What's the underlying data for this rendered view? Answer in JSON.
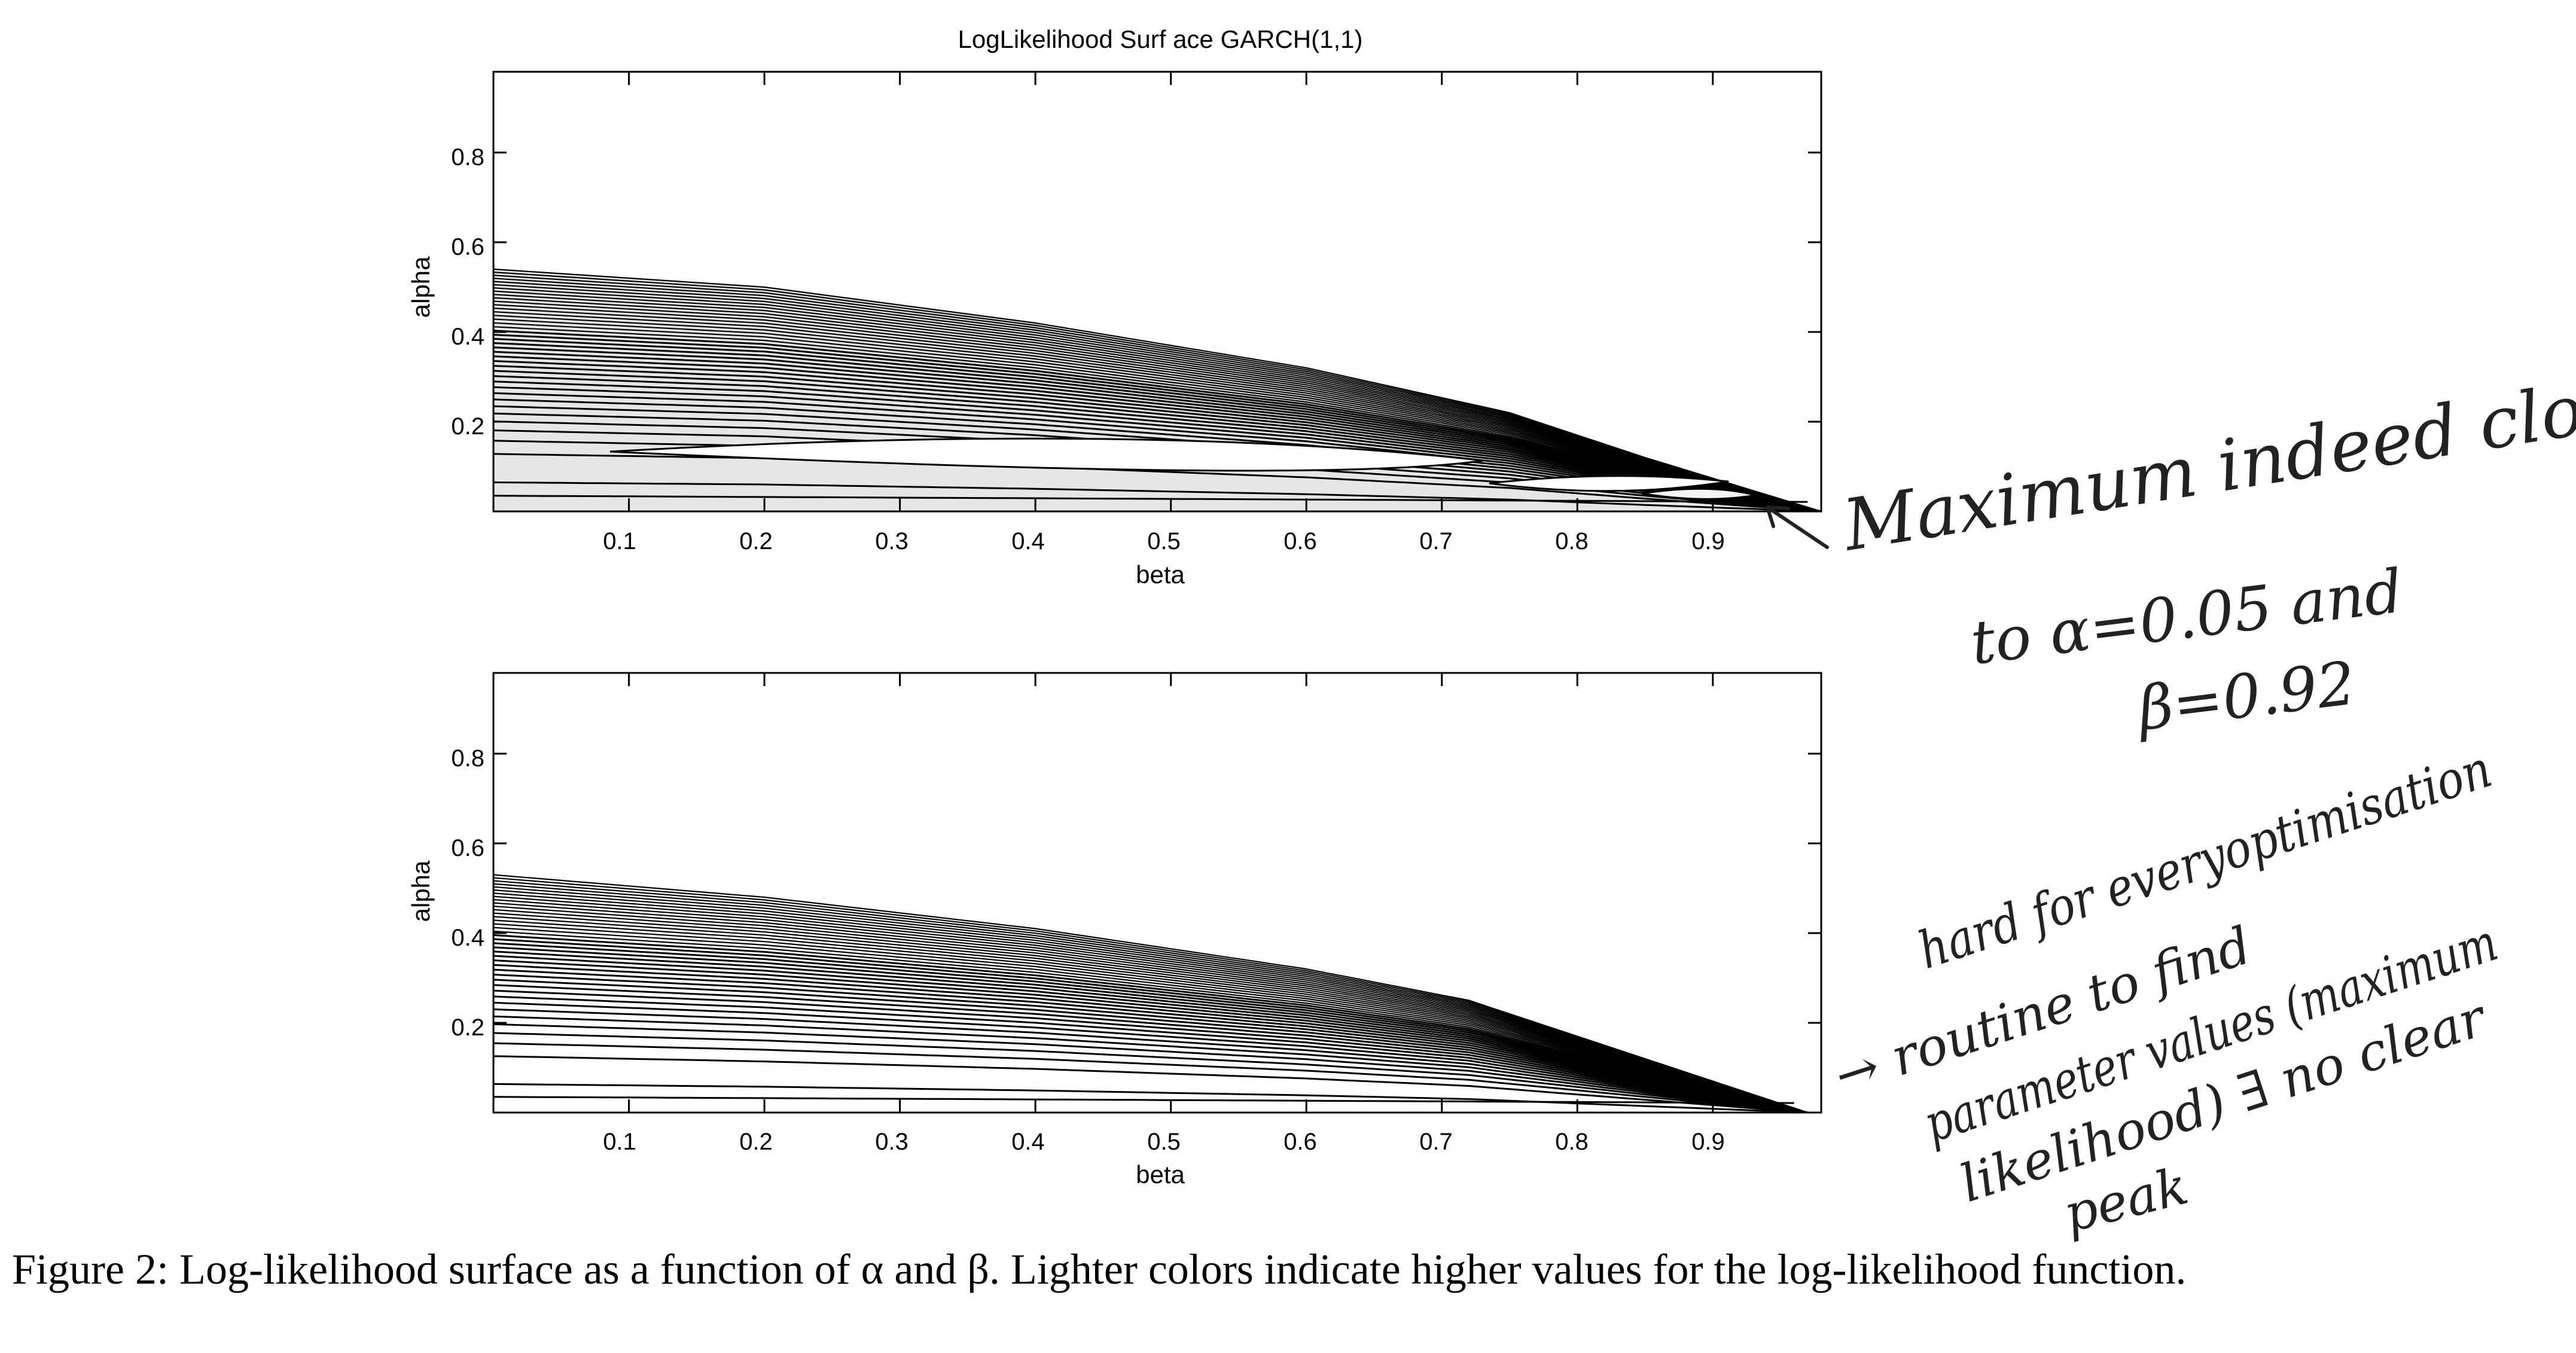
{
  "chart_data": [
    {
      "type": "contour",
      "title": "LogLikelihood Surf ace GARCH(1,1)",
      "xlabel": "beta",
      "ylabel": "alpha",
      "xlim": [
        0,
        0.98
      ],
      "ylim": [
        0,
        0.98
      ],
      "xticks": [
        "0.1",
        "0.2",
        "0.3",
        "0.4",
        "0.5",
        "0.6",
        "0.7",
        "0.8",
        "0.9"
      ],
      "yticks": [
        "0.2",
        "0.4",
        "0.6",
        "0.8"
      ],
      "contour_levels": 40,
      "boundary": [
        {
          "beta": 0.0,
          "alpha": 0.54
        },
        {
          "beta": 0.2,
          "alpha": 0.5
        },
        {
          "beta": 0.4,
          "alpha": 0.42
        },
        {
          "beta": 0.6,
          "alpha": 0.32
        },
        {
          "beta": 0.75,
          "alpha": 0.22
        },
        {
          "beta": 0.85,
          "alpha": 0.12
        },
        {
          "beta": 0.98,
          "alpha": 0.0
        }
      ],
      "maximum": {
        "beta": 0.92,
        "alpha": 0.05
      }
    },
    {
      "type": "contour",
      "title": "",
      "xlabel": "beta",
      "ylabel": "alpha",
      "xlim": [
        0,
        0.98
      ],
      "ylim": [
        0,
        0.98
      ],
      "xticks": [
        "0.1",
        "0.2",
        "0.3",
        "0.4",
        "0.5",
        "0.6",
        "0.7",
        "0.8",
        "0.9"
      ],
      "yticks": [
        "0.2",
        "0.4",
        "0.6",
        "0.8"
      ],
      "contour_levels": 40,
      "boundary": [
        {
          "beta": 0.0,
          "alpha": 0.53
        },
        {
          "beta": 0.2,
          "alpha": 0.48
        },
        {
          "beta": 0.4,
          "alpha": 0.41
        },
        {
          "beta": 0.6,
          "alpha": 0.32
        },
        {
          "beta": 0.72,
          "alpha": 0.25
        },
        {
          "beta": 0.85,
          "alpha": 0.12
        },
        {
          "beta": 0.97,
          "alpha": 0.0
        }
      ]
    }
  ],
  "annotations": {
    "top_lines": [
      "Maximum indeed close",
      "to α=0.05 and",
      "β=0.92"
    ],
    "bottom_lines": [
      "hard for everyoptimisation",
      "→ routine to find",
      "parameter values (maximum",
      "likelihood) ∃ no clear",
      "peak"
    ]
  },
  "caption": {
    "text": "Figure 2: Log-likelihood surface as a function of α and β. Lighter colors indicate higher values for the log-likelihood function."
  }
}
